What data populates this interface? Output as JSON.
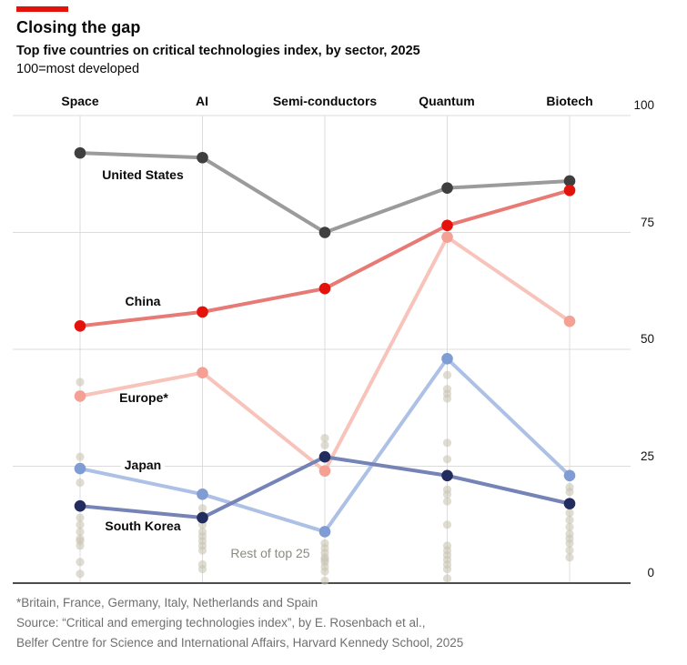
{
  "header": {
    "title": "Closing the gap",
    "subtitle": "Top five countries on critical technologies index, by sector, 2025",
    "unit_note": "100=most developed",
    "accent_color": "#e3120b"
  },
  "chart_data": {
    "type": "line",
    "title": "Top five countries on critical technologies index, by sector, 2025",
    "categories": [
      "Space",
      "AI",
      "Semi-conductors",
      "Quantum",
      "Biotech"
    ],
    "y_ticks": [
      0,
      25,
      50,
      75,
      100
    ],
    "ylim": [
      0,
      100
    ],
    "grid": true,
    "legend_position": "inline-labels",
    "colors": {
      "grid": "#dcdcdc",
      "axis": "#121212"
    },
    "series": [
      {
        "id": "united-states",
        "name": "United States",
        "values": [
          92,
          91,
          75,
          84.5,
          86
        ],
        "line_color": "#9b9b9b",
        "dot_color": "#3f3f3f"
      },
      {
        "id": "china",
        "name": "China",
        "values": [
          55,
          58,
          63,
          76.5,
          84
        ],
        "line_color": "#e87a76",
        "dot_color": "#e3120b"
      },
      {
        "id": "europe",
        "name": "Europe*",
        "values": [
          40,
          45,
          24,
          74,
          56
        ],
        "line_color": "#f7c3ba",
        "dot_color": "#f5a094"
      },
      {
        "id": "japan",
        "name": "Japan",
        "values": [
          24.5,
          19,
          11,
          48,
          23
        ],
        "line_color": "#adc0e5",
        "dot_color": "#7f9cd4"
      },
      {
        "id": "south-korea",
        "name": "South Korea",
        "values": [
          16.5,
          14,
          27,
          23,
          17
        ],
        "line_color": "#7583b7",
        "dot_color": "#222c5e"
      }
    ],
    "rest_of_top25": {
      "label": "Rest of top 25",
      "color": "#c9c5b4",
      "columns": [
        [
          43,
          27,
          21.5,
          14,
          12.5,
          11,
          9.5,
          9,
          8,
          4.5,
          2
        ],
        [
          16,
          12.5,
          11,
          10,
          9,
          8,
          7,
          4,
          3
        ],
        [
          31,
          29.5,
          8.5,
          7.5,
          6.5,
          5.5,
          5,
          4.5,
          3.5,
          2.5,
          0.5
        ],
        [
          44.5,
          41.5,
          40.5,
          39.5,
          30,
          26.5,
          20,
          19,
          17.5,
          12.5,
          8,
          7,
          6,
          5,
          4,
          3,
          1
        ],
        [
          20.5,
          19.5,
          15,
          13.5,
          12,
          10.5,
          9.5,
          8.5,
          7,
          5.5
        ]
      ]
    }
  },
  "footnotes": [
    "*Britain, France, Germany, Italy, Netherlands and Spain",
    "Source: “Critical and emerging technologies index”, by E. Rosenbach et al.,",
    "Belfer Centre for Science and International Affairs, Harvard Kennedy School, 2025"
  ]
}
